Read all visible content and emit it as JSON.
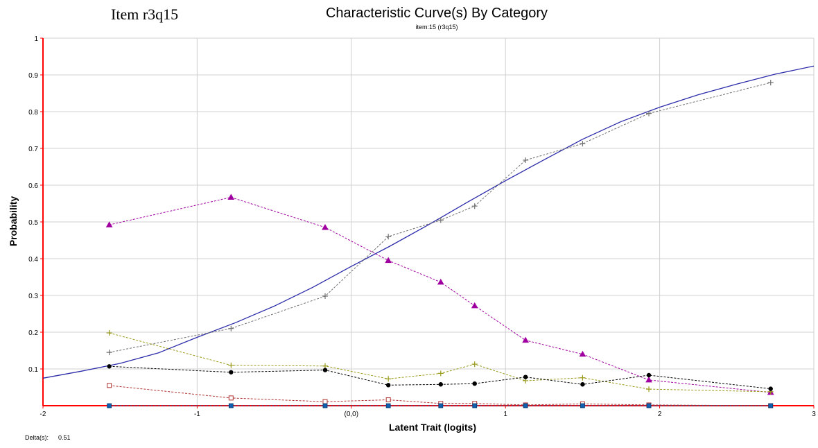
{
  "header": {
    "item_label": "Item r3q15",
    "title": "Characteristic Curve(s) By Category",
    "subtitle": "item:15 (r3q15)"
  },
  "footer": {
    "delta_label": "Delta(s):",
    "delta_value": "0.51"
  },
  "chart_data": {
    "type": "line",
    "title": "Characteristic Curve(s) By Category",
    "subtitle": "item:15 (r3q15)",
    "xlabel": "Latent Trait (logits)",
    "ylabel": "Probability",
    "xlim": [
      -2,
      3
    ],
    "ylim": [
      0,
      1
    ],
    "x_ticks": [
      -2,
      -1,
      0,
      1,
      2,
      3
    ],
    "x_tick_labels": [
      "-2",
      "-1",
      "(0,0)",
      "1",
      "2",
      "3"
    ],
    "y_ticks": [
      0.1,
      0.2,
      0.3,
      0.4,
      0.5,
      0.6,
      0.7,
      0.8,
      0.9,
      1
    ],
    "y_tick_labels": [
      "0.1",
      "0.2",
      "0.3",
      "0.4",
      "0.5",
      "0.6",
      "0.7",
      "0.8",
      "0.9",
      "1"
    ],
    "grid": true,
    "legend": "none",
    "model_curve": {
      "color": "#2b2baa",
      "x": [
        -2.0,
        -1.75,
        -1.5,
        -1.25,
        -1.0,
        -0.75,
        -0.5,
        -0.25,
        0.0,
        0.25,
        0.5,
        0.75,
        1.0,
        1.25,
        1.5,
        1.75,
        2.0,
        2.25,
        2.5,
        2.75,
        3.0
      ],
      "y": [
        0.075,
        0.094,
        0.115,
        0.144,
        0.186,
        0.226,
        0.271,
        0.322,
        0.379,
        0.434,
        0.492,
        0.553,
        0.612,
        0.669,
        0.725,
        0.773,
        0.812,
        0.846,
        0.875,
        0.902,
        0.924
      ]
    },
    "series": [
      {
        "color": "#707070",
        "marker": "plus",
        "x": [
          -1.57,
          -0.78,
          -0.17,
          0.24,
          0.58,
          0.8,
          1.13,
          1.5,
          1.93,
          2.72
        ],
        "y": [
          0.145,
          0.21,
          0.298,
          0.46,
          0.505,
          0.543,
          0.668,
          0.713,
          0.795,
          0.879
        ]
      },
      {
        "color": "#a000a0",
        "marker": "triangle",
        "x": [
          -1.57,
          -0.78,
          -0.17,
          0.24,
          0.58,
          0.8,
          1.13,
          1.5,
          1.93,
          2.72
        ],
        "y": [
          0.492,
          0.567,
          0.485,
          0.395,
          0.336,
          0.272,
          0.178,
          0.14,
          0.07,
          0.036
        ]
      },
      {
        "color": "#9a9a1a",
        "marker": "plus",
        "x": [
          -1.57,
          -0.78,
          -0.17,
          0.24,
          0.58,
          0.8,
          1.13,
          1.5,
          1.93,
          2.72
        ],
        "y": [
          0.198,
          0.11,
          0.108,
          0.073,
          0.088,
          0.113,
          0.068,
          0.076,
          0.045,
          0.038
        ]
      },
      {
        "color": "#000000",
        "marker": "circle",
        "x": [
          -1.57,
          -0.78,
          -0.17,
          0.24,
          0.58,
          0.8,
          1.13,
          1.5,
          1.93,
          2.72
        ],
        "y": [
          0.107,
          0.091,
          0.097,
          0.056,
          0.058,
          0.06,
          0.078,
          0.058,
          0.083,
          0.046
        ]
      },
      {
        "color": "#b03030",
        "marker": "square-open",
        "x": [
          -1.57,
          -0.78,
          -0.17,
          0.24,
          0.58,
          0.8,
          1.13,
          1.5,
          1.93,
          2.72
        ],
        "y": [
          0.055,
          0.021,
          0.011,
          0.016,
          0.006,
          0.006,
          0.002,
          0.005,
          0.002,
          0.0
        ]
      },
      {
        "color": "#1060b0",
        "marker": "square",
        "x": [
          -1.57,
          -0.78,
          -0.17,
          0.24,
          0.58,
          0.8,
          1.13,
          1.5,
          1.93,
          2.72
        ],
        "y": [
          0.0,
          0.0,
          0.0,
          0.0,
          0.0,
          0.0,
          0.0,
          0.0,
          0.0,
          0.0
        ]
      }
    ],
    "colors": {
      "axis": "#ff0000",
      "grid": "#d0d0d0"
    }
  }
}
